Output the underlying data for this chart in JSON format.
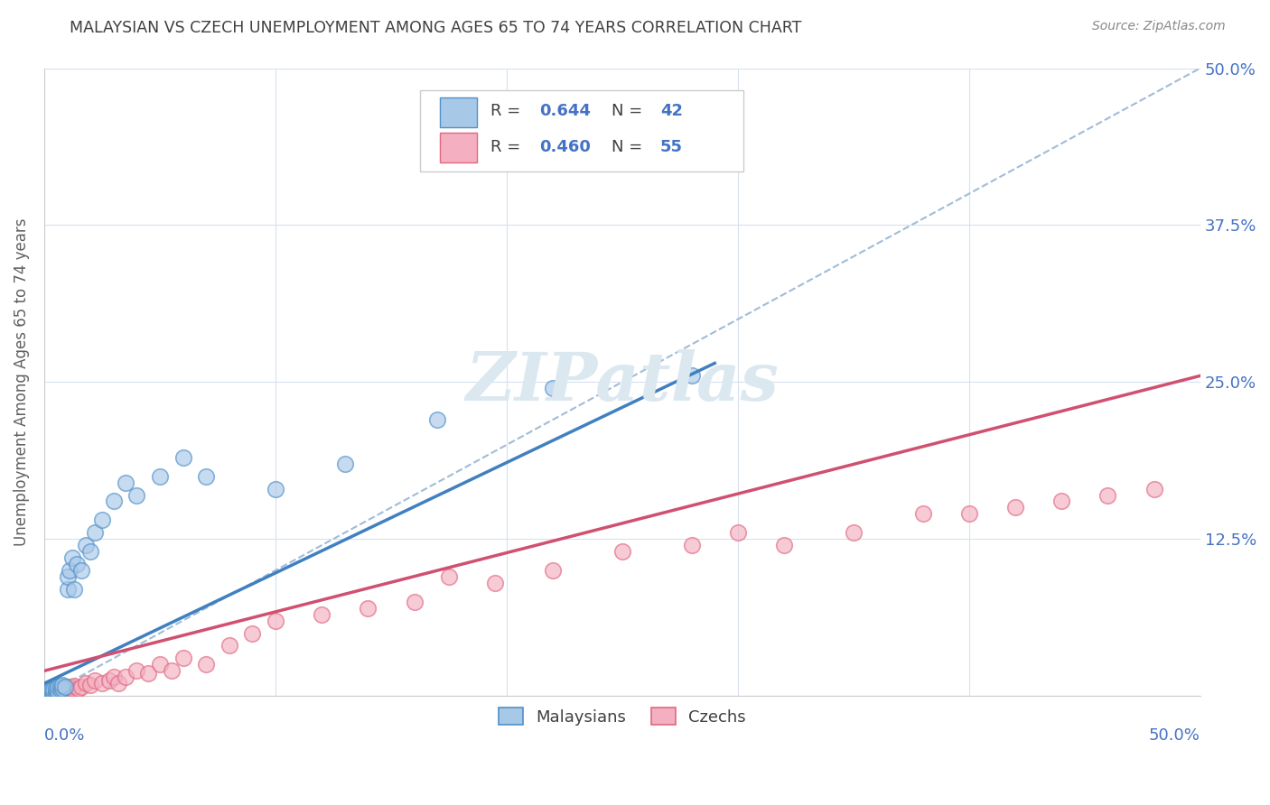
{
  "title": "MALAYSIAN VS CZECH UNEMPLOYMENT AMONG AGES 65 TO 74 YEARS CORRELATION CHART",
  "source": "Source: ZipAtlas.com",
  "ylabel": "Unemployment Among Ages 65 to 74 years",
  "xlim": [
    0.0,
    0.5
  ],
  "ylim": [
    0.0,
    0.5
  ],
  "yticks": [
    0.0,
    0.125,
    0.25,
    0.375,
    0.5
  ],
  "xticks": [
    0.0,
    0.1,
    0.2,
    0.3,
    0.4,
    0.5
  ],
  "legend_label_blue": "Malaysians",
  "legend_label_pink": "Czechs",
  "legend_blue_text": "R = 0.644   N = 42",
  "legend_pink_text": "R = 0.460   N = 55",
  "color_blue_fill": "#a8c8e8",
  "color_blue_edge": "#5090c8",
  "color_pink_fill": "#f4b0c0",
  "color_pink_edge": "#e06880",
  "color_blue_line": "#4080c0",
  "color_pink_line": "#d05070",
  "color_dashed": "#a0bcd8",
  "axis_tick_color": "#4472c4",
  "title_color": "#404040",
  "source_color": "#888888",
  "ylabel_color": "#606060",
  "legend_text_color": "#404040",
  "legend_N_color": "#4472c4",
  "grid_color": "#d8e0f0",
  "bg_color": "#ffffff",
  "blue_x": [
    0.001,
    0.001,
    0.002,
    0.002,
    0.002,
    0.003,
    0.003,
    0.003,
    0.004,
    0.004,
    0.005,
    0.005,
    0.005,
    0.006,
    0.006,
    0.007,
    0.007,
    0.008,
    0.008,
    0.009,
    0.01,
    0.01,
    0.011,
    0.012,
    0.013,
    0.014,
    0.016,
    0.018,
    0.02,
    0.022,
    0.025,
    0.03,
    0.035,
    0.04,
    0.05,
    0.06,
    0.07,
    0.1,
    0.13,
    0.17,
    0.22,
    0.28
  ],
  "blue_y": [
    0.001,
    0.002,
    0.001,
    0.003,
    0.004,
    0.002,
    0.004,
    0.005,
    0.003,
    0.005,
    0.003,
    0.004,
    0.006,
    0.004,
    0.007,
    0.005,
    0.008,
    0.006,
    0.009,
    0.007,
    0.085,
    0.095,
    0.1,
    0.11,
    0.085,
    0.105,
    0.1,
    0.12,
    0.115,
    0.13,
    0.14,
    0.155,
    0.17,
    0.16,
    0.175,
    0.19,
    0.175,
    0.165,
    0.185,
    0.22,
    0.245,
    0.255
  ],
  "pink_x": [
    0.001,
    0.001,
    0.002,
    0.002,
    0.003,
    0.003,
    0.004,
    0.004,
    0.005,
    0.005,
    0.005,
    0.006,
    0.007,
    0.008,
    0.009,
    0.01,
    0.011,
    0.012,
    0.013,
    0.015,
    0.016,
    0.018,
    0.02,
    0.022,
    0.025,
    0.028,
    0.03,
    0.032,
    0.035,
    0.04,
    0.045,
    0.05,
    0.055,
    0.06,
    0.07,
    0.08,
    0.09,
    0.1,
    0.12,
    0.14,
    0.16,
    0.175,
    0.195,
    0.22,
    0.25,
    0.28,
    0.3,
    0.32,
    0.35,
    0.38,
    0.4,
    0.42,
    0.44,
    0.46,
    0.48
  ],
  "pink_y": [
    0.001,
    0.002,
    0.002,
    0.003,
    0.002,
    0.004,
    0.003,
    0.005,
    0.002,
    0.004,
    0.006,
    0.003,
    0.005,
    0.004,
    0.006,
    0.005,
    0.007,
    0.006,
    0.008,
    0.006,
    0.007,
    0.01,
    0.009,
    0.012,
    0.01,
    0.012,
    0.015,
    0.01,
    0.015,
    0.02,
    0.018,
    0.025,
    0.02,
    0.03,
    0.025,
    0.04,
    0.05,
    0.06,
    0.065,
    0.07,
    0.075,
    0.095,
    0.09,
    0.1,
    0.115,
    0.12,
    0.13,
    0.12,
    0.13,
    0.145,
    0.145,
    0.15,
    0.155,
    0.16,
    0.165
  ],
  "blue_line_x0": 0.0,
  "blue_line_y0": 0.01,
  "blue_line_x1": 0.29,
  "blue_line_y1": 0.265,
  "pink_line_x0": 0.0,
  "pink_line_y0": 0.02,
  "pink_line_x1": 0.5,
  "pink_line_y1": 0.255
}
